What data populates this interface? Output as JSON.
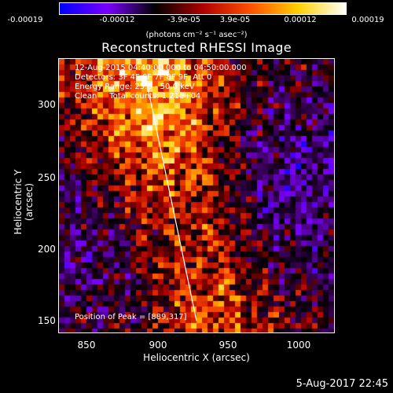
{
  "colorbar": {
    "ticks": [
      "-0.00019",
      "-0.00012",
      "-3.9e-05",
      "3.9e-05",
      "0.00012",
      "0.00019"
    ],
    "tick_values": [
      -0.00019,
      -0.00012,
      -3.9e-05,
      3.9e-05,
      0.00012,
      0.00019
    ],
    "units": "(photons cm⁻² s⁻¹ asec⁻²)",
    "colors": [
      "#0000ff",
      "#7a00ff",
      "#000000",
      "#b00000",
      "#ff5000",
      "#ffd000",
      "#ffffff"
    ]
  },
  "title": "Reconstructed RHESSI Image",
  "annotations": {
    "line1": "12-Aug-2015 04:40:00.000 to 04:50:00.000",
    "line2": "Detectors: 3F 4F 6F 7F 8F 9F, Att 0",
    "line3": "Energy Range: 25.0 - 50.0 keV",
    "line4": "Clean     Total counts: 1.21e+04",
    "peak": "Position of Peak = [889,317]"
  },
  "axes": {
    "xlabel": "Heliocentric X (arcsec)",
    "ylabel": "Heliocentric Y (arcsec)",
    "xticks": [
      "850",
      "900",
      "950",
      "1000"
    ],
    "xtick_values": [
      850,
      900,
      950,
      1000
    ],
    "yticks": [
      "150",
      "200",
      "250",
      "300"
    ],
    "ytick_values": [
      150,
      200,
      250,
      300
    ],
    "xlim": [
      832,
      1022
    ],
    "ylim": [
      141,
      328
    ]
  },
  "limb_line": {
    "from": [
      893,
      310
    ],
    "to": [
      927,
      149
    ]
  },
  "datestamp": "5-Aug-2017 22:45"
}
